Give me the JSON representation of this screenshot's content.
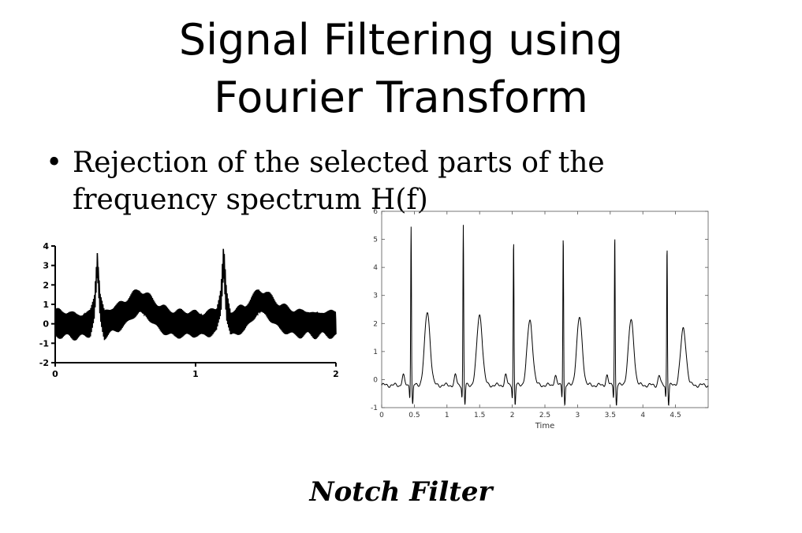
{
  "slide": {
    "title_line1": "Signal Filtering using",
    "title_line2": "Fourier Transform",
    "bullet_symbol": "•",
    "bullet_text": "Rejection of the selected parts of the frequency spectrum H(f)",
    "caption": "Notch Filter"
  },
  "chart_data": [
    {
      "type": "line",
      "title": "",
      "xlabel": "",
      "ylabel": "",
      "xlim": [
        0,
        2
      ],
      "ylim": [
        -2,
        4
      ],
      "x_ticks": [
        "0",
        "1",
        "2"
      ],
      "y_ticks": [
        "4",
        "3",
        "2",
        "1",
        "0",
        "-1",
        "-2"
      ],
      "grid": false,
      "series": [
        {
          "description_visible": "noisy ECG with strong high-frequency interference",
          "x": [
            0,
            0.05,
            0.1,
            0.15,
            0.2,
            0.25,
            0.28,
            0.3,
            0.32,
            0.35,
            0.4,
            0.45,
            0.5,
            0.55,
            0.6,
            0.65,
            0.7,
            0.75,
            0.8,
            0.85,
            0.9,
            0.95,
            1.0,
            1.05,
            1.1,
            1.15,
            1.18,
            1.2,
            1.22,
            1.25,
            1.3,
            1.35,
            1.4,
            1.45,
            1.5,
            1.55,
            1.6,
            1.65,
            1.7,
            1.75,
            1.8,
            1.85,
            1.9,
            1.95,
            2.0
          ],
          "y": [
            0.1,
            0.0,
            0.1,
            0.0,
            0.1,
            0.2,
            1.0,
            3.2,
            1.0,
            0.0,
            0.2,
            0.3,
            0.5,
            0.8,
            1.0,
            0.8,
            0.5,
            0.2,
            0.1,
            0.0,
            0.1,
            0.1,
            0.2,
            0.1,
            0.2,
            0.3,
            1.2,
            3.4,
            1.0,
            0.0,
            0.1,
            0.2,
            0.6,
            1.0,
            0.9,
            0.6,
            0.3,
            0.2,
            0.1,
            0.1,
            0.2,
            0.1,
            0.2,
            0.1,
            0.1
          ]
        }
      ]
    },
    {
      "type": "line",
      "title": "",
      "xlabel": "Time",
      "ylabel": "",
      "xlim": [
        0,
        5
      ],
      "ylim": [
        -1,
        6
      ],
      "x_ticks": [
        "0",
        "0.5",
        "1",
        "1.5",
        "2",
        "2.5",
        "3",
        "3.5",
        "4",
        "4.5"
      ],
      "y_ticks": [
        "6",
        "5",
        "4",
        "3",
        "2",
        "1",
        "0",
        "-1"
      ],
      "grid": false,
      "series": [
        {
          "description_visible": "filtered ECG signal",
          "beats_r_peak_times": [
            0.45,
            1.25,
            2.02,
            2.78,
            3.57,
            4.37
          ],
          "r_peak_values": [
            5.5,
            5.5,
            5.0,
            5.2,
            5.2,
            4.8
          ],
          "t_wave_values": [
            2.4,
            2.3,
            2.1,
            2.2,
            2.1,
            1.8
          ],
          "baseline": -0.2
        }
      ]
    }
  ]
}
